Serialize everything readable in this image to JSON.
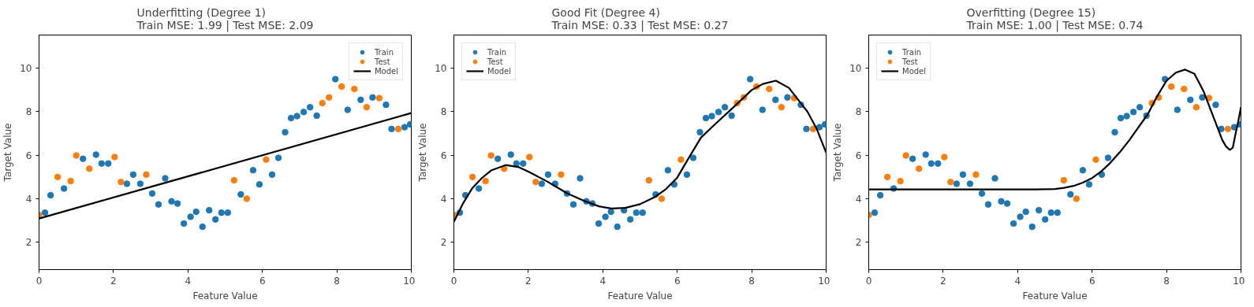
{
  "chart_data": [
    {
      "type": "scatter",
      "title": "Underfitting (Degree 1)\nTrain MSE: 1.99 | Test MSE: 2.09",
      "xlabel": "Feature Value",
      "ylabel": "Target Value",
      "xlim": [
        0,
        10
      ],
      "ylim": [
        0.74,
        11.53
      ],
      "xticks": [
        0,
        2,
        4,
        6,
        8,
        10
      ],
      "yticks": [
        2,
        4,
        6,
        8,
        10
      ],
      "legend": "top right",
      "grid": false,
      "series": [
        {
          "name": "Train",
          "marker": "circle",
          "color": "#1f77b4",
          "x": [
            0.16,
            0.31,
            0.67,
            1.18,
            1.53,
            1.68,
            1.86,
            2.36,
            2.53,
            2.72,
            3.04,
            3.21,
            3.39,
            3.56,
            3.72,
            3.89,
            4.07,
            4.22,
            4.39,
            4.57,
            4.74,
            4.9,
            5.07,
            5.42,
            5.75,
            5.92,
            6.26,
            6.43,
            6.61,
            6.77,
            6.93,
            7.11,
            7.28,
            7.46,
            7.96,
            8.29,
            8.64,
            8.96,
            9.32,
            9.47,
            9.82,
            9.97
          ],
          "values": [
            3.36,
            4.16,
            4.47,
            5.84,
            6.03,
            5.62,
            5.62,
            4.69,
            5.11,
            4.69,
            4.24,
            3.74,
            4.94,
            3.88,
            3.78,
            2.86,
            3.17,
            3.4,
            2.71,
            3.47,
            3.05,
            3.36,
            3.36,
            4.2,
            5.31,
            4.66,
            5.11,
            5.88,
            7.06,
            7.71,
            7.8,
            7.99,
            8.21,
            7.82,
            9.5,
            8.09,
            8.55,
            8.66,
            8.32,
            7.21,
            7.29,
            7.42
          ]
        },
        {
          "name": "Test",
          "marker": "circle",
          "color": "#ff7f0e",
          "x": [
            0.0,
            0.5,
            0.85,
            1.0,
            1.35,
            2.03,
            2.2,
            2.88,
            5.24,
            5.58,
            6.1,
            7.61,
            7.79,
            8.13,
            8.47,
            8.8,
            9.14,
            9.65
          ],
          "values": [
            3.26,
            5.0,
            4.81,
            5.99,
            5.38,
            5.92,
            4.77,
            5.11,
            4.85,
            4.0,
            5.8,
            8.4,
            8.66,
            9.16,
            9.05,
            8.21,
            8.63,
            7.21
          ]
        },
        {
          "name": "Model",
          "type": "line",
          "marker": "none",
          "color": "#000000",
          "x": [
            0,
            10
          ],
          "values": [
            3.09,
            7.94
          ]
        }
      ]
    },
    {
      "type": "scatter",
      "title": "Good Fit (Degree 4)\nTrain MSE: 0.33 | Test MSE: 0.27",
      "xlabel": "Feature Value",
      "ylabel": "Target Value",
      "xlim": [
        0,
        10
      ],
      "ylim": [
        0.74,
        11.53
      ],
      "xticks": [
        0,
        2,
        4,
        6,
        8,
        10
      ],
      "yticks": [
        2,
        4,
        6,
        8,
        10
      ],
      "legend": "top left",
      "grid": false,
      "series": [
        {
          "name": "Train",
          "marker": "circle",
          "color": "#1f77b4",
          "x": [
            0.16,
            0.31,
            0.67,
            1.18,
            1.53,
            1.68,
            1.86,
            2.36,
            2.53,
            2.72,
            3.04,
            3.21,
            3.39,
            3.56,
            3.72,
            3.89,
            4.07,
            4.22,
            4.39,
            4.57,
            4.74,
            4.9,
            5.07,
            5.42,
            5.75,
            5.92,
            6.26,
            6.43,
            6.61,
            6.77,
            6.93,
            7.11,
            7.28,
            7.46,
            7.96,
            8.29,
            8.64,
            8.96,
            9.32,
            9.47,
            9.82,
            9.97
          ],
          "values": [
            3.36,
            4.16,
            4.47,
            5.84,
            6.03,
            5.62,
            5.62,
            4.69,
            5.11,
            4.69,
            4.24,
            3.74,
            4.94,
            3.88,
            3.78,
            2.86,
            3.17,
            3.4,
            2.71,
            3.47,
            3.05,
            3.36,
            3.36,
            4.2,
            5.31,
            4.66,
            5.11,
            5.88,
            7.06,
            7.71,
            7.8,
            7.99,
            8.21,
            7.82,
            9.5,
            8.09,
            8.55,
            8.66,
            8.32,
            7.21,
            7.29,
            7.42
          ]
        },
        {
          "name": "Test",
          "marker": "circle",
          "color": "#ff7f0e",
          "x": [
            0.0,
            0.5,
            0.85,
            1.0,
            1.35,
            2.03,
            2.2,
            2.88,
            5.24,
            5.58,
            6.1,
            7.61,
            7.79,
            8.13,
            8.47,
            8.8,
            9.14,
            9.65
          ],
          "values": [
            3.26,
            5.0,
            4.81,
            5.99,
            5.38,
            5.92,
            4.77,
            5.11,
            4.85,
            4.0,
            5.8,
            8.4,
            8.66,
            9.16,
            9.05,
            8.21,
            8.63,
            7.21
          ]
        },
        {
          "name": "Model",
          "type": "line",
          "marker": "none",
          "color": "#000000",
          "x": [
            0,
            0.25,
            0.5,
            0.75,
            1,
            1.39,
            1.75,
            2,
            2.5,
            3.04,
            3.5,
            3.9,
            4.23,
            4.6,
            5,
            5.4,
            5.7,
            6,
            6.3,
            6.64,
            7,
            7.52,
            8,
            8.3,
            8.65,
            9,
            9.34,
            9.5,
            9.75,
            10
          ],
          "values": [
            2.94,
            3.8,
            4.5,
            4.95,
            5.3,
            5.55,
            5.45,
            5.25,
            4.8,
            4.25,
            3.9,
            3.65,
            3.55,
            3.58,
            3.75,
            4.08,
            4.45,
            4.97,
            5.85,
            6.82,
            7.4,
            8.22,
            9.0,
            9.28,
            9.43,
            9.1,
            8.35,
            8.0,
            7.2,
            6.12
          ]
        }
      ]
    },
    {
      "type": "scatter",
      "title": "Overfitting (Degree 15)\nTrain MSE: 1.00 | Test MSE: 0.74",
      "xlabel": "Feature Value",
      "ylabel": "Target Value",
      "xlim": [
        0,
        10
      ],
      "ylim": [
        0.74,
        11.53
      ],
      "xticks": [
        0,
        2,
        4,
        6,
        8,
        10
      ],
      "yticks": [
        2,
        4,
        6,
        8,
        10
      ],
      "legend": "top left",
      "grid": false,
      "series": [
        {
          "name": "Train",
          "marker": "circle",
          "color": "#1f77b4",
          "x": [
            0.16,
            0.31,
            0.67,
            1.18,
            1.53,
            1.68,
            1.86,
            2.36,
            2.53,
            2.72,
            3.04,
            3.21,
            3.39,
            3.56,
            3.72,
            3.89,
            4.07,
            4.22,
            4.39,
            4.57,
            4.74,
            4.9,
            5.07,
            5.42,
            5.75,
            5.92,
            6.26,
            6.43,
            6.61,
            6.77,
            6.93,
            7.11,
            7.28,
            7.46,
            7.96,
            8.29,
            8.64,
            8.96,
            9.32,
            9.47,
            9.82,
            9.97
          ],
          "values": [
            3.36,
            4.16,
            4.47,
            5.84,
            6.03,
            5.62,
            5.62,
            4.69,
            5.11,
            4.69,
            4.24,
            3.74,
            4.94,
            3.88,
            3.78,
            2.86,
            3.17,
            3.4,
            2.71,
            3.47,
            3.05,
            3.36,
            3.36,
            4.2,
            5.31,
            4.66,
            5.11,
            5.88,
            7.06,
            7.71,
            7.8,
            7.99,
            8.21,
            7.82,
            9.5,
            8.09,
            8.55,
            8.66,
            8.32,
            7.21,
            7.29,
            7.42
          ]
        },
        {
          "name": "Test",
          "marker": "circle",
          "color": "#ff7f0e",
          "x": [
            0.0,
            0.5,
            0.85,
            1.0,
            1.35,
            2.03,
            2.2,
            2.88,
            5.24,
            5.58,
            6.1,
            7.61,
            7.79,
            8.13,
            8.47,
            8.8,
            9.14,
            9.65
          ],
          "values": [
            3.26,
            5.0,
            4.81,
            5.99,
            5.38,
            5.92,
            4.77,
            5.11,
            4.85,
            4.0,
            5.8,
            8.4,
            8.66,
            9.16,
            9.05,
            8.21,
            8.63,
            7.21
          ]
        },
        {
          "name": "Model",
          "type": "line",
          "marker": "none",
          "color": "#000000",
          "x": [
            0,
            2,
            4,
            4.5,
            5,
            5.25,
            5.5,
            5.75,
            6,
            6.25,
            6.5,
            6.75,
            7,
            7.25,
            7.5,
            7.75,
            8,
            8.25,
            8.5,
            8.75,
            9,
            9.15,
            9.3,
            9.5,
            9.6,
            9.7,
            9.78,
            9.85,
            9.92,
            10
          ],
          "values": [
            4.43,
            4.43,
            4.43,
            4.43,
            4.45,
            4.5,
            4.59,
            4.74,
            4.95,
            5.26,
            5.67,
            6.15,
            6.69,
            7.3,
            7.9,
            8.72,
            9.43,
            9.8,
            9.94,
            9.75,
            8.92,
            8.25,
            7.58,
            6.69,
            6.4,
            6.25,
            6.35,
            6.95,
            7.5,
            8.22
          ]
        }
      ]
    }
  ]
}
